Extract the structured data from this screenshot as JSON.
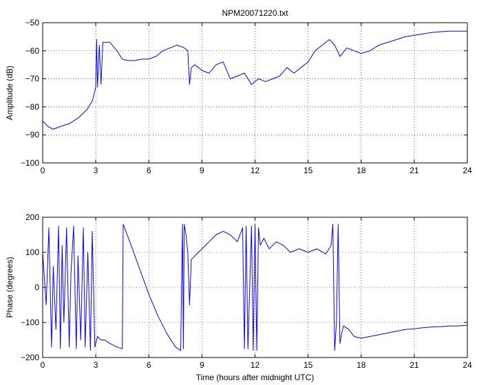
{
  "chart_data": [
    {
      "type": "line",
      "title": "NPM20071220.txt",
      "xlabel": "",
      "ylabel": "Amplitude (dB)",
      "xlim": [
        0,
        24
      ],
      "ylim": [
        -100,
        -50
      ],
      "xticks": [
        0,
        3,
        6,
        9,
        12,
        15,
        18,
        21,
        24
      ],
      "xtick_labels": [
        "0",
        "3",
        "6",
        "9",
        "12",
        "15",
        "18",
        "21",
        "24"
      ],
      "yticks": [
        -100,
        -90,
        -80,
        -70,
        -60,
        -50
      ],
      "ytick_labels": [
        "−100",
        "−90",
        "−80",
        "−70",
        "−60",
        "−50"
      ],
      "grid": true,
      "line_color": "#0000ff",
      "series": [
        {
          "x": [
            0,
            0.3,
            0.6,
            1.0,
            1.5,
            2.0,
            2.5,
            2.8,
            3.0,
            3.05,
            3.1,
            3.2,
            3.3,
            3.4,
            3.5,
            3.8,
            4.2,
            4.5,
            4.8,
            5.2,
            5.6,
            6.0,
            6.4,
            6.8,
            7.2,
            7.6,
            8.0,
            8.2,
            8.3,
            8.4,
            8.6,
            9.0,
            9.4,
            9.8,
            10.2,
            10.6,
            11.0,
            11.4,
            11.8,
            12.2,
            12.6,
            13.0,
            13.4,
            13.8,
            14.2,
            14.6,
            15.0,
            15.4,
            15.8,
            16.2,
            16.5,
            16.8,
            17.2,
            17.6,
            18.0,
            18.5,
            19.0,
            19.5,
            20.0,
            20.5,
            21.0,
            21.5,
            22.0,
            22.5,
            23.0,
            23.5,
            24.0
          ],
          "values": [
            -85,
            -87,
            -88,
            -87,
            -86,
            -84,
            -81,
            -78,
            -73,
            -56,
            -73,
            -58,
            -72,
            -57,
            -57,
            -57,
            -60,
            -63,
            -63.5,
            -63.5,
            -63,
            -63,
            -62,
            -60,
            -59,
            -58,
            -59,
            -60,
            -72,
            -66,
            -65,
            -67,
            -68,
            -65,
            -64,
            -70,
            -69,
            -68,
            -72,
            -70,
            -71,
            -70,
            -69,
            -66,
            -68,
            -66,
            -64,
            -60,
            -58,
            -56,
            -58,
            -62,
            -59,
            -60,
            -61,
            -60,
            -58,
            -57,
            -56,
            -55,
            -54.5,
            -54,
            -53.5,
            -53.2,
            -53,
            -53,
            -53
          ]
        }
      ]
    },
    {
      "type": "line",
      "title": "",
      "xlabel": "Time (hours after midnight UTC)",
      "ylabel": "Phase (degrees)",
      "xlim": [
        0,
        24
      ],
      "ylim": [
        -200,
        200
      ],
      "xticks": [
        0,
        3,
        6,
        9,
        12,
        15,
        18,
        21,
        24
      ],
      "xtick_labels": [
        "0",
        "3",
        "6",
        "9",
        "12",
        "15",
        "18",
        "21",
        "24"
      ],
      "yticks": [
        -200,
        -100,
        0,
        100,
        200
      ],
      "ytick_labels": [
        "−200",
        "−100",
        "0",
        "100",
        "200"
      ],
      "grid": true,
      "line_color": "#0000ff",
      "series": [
        {
          "x": [
            0,
            0.2,
            0.35,
            0.5,
            0.6,
            0.75,
            0.9,
            1.0,
            1.1,
            1.2,
            1.35,
            1.5,
            1.6,
            1.75,
            1.9,
            2.0,
            2.15,
            2.3,
            2.4,
            2.55,
            2.7,
            2.8,
            2.95,
            3.1,
            3.3,
            3.5,
            3.8,
            4.2,
            4.5,
            4.55,
            5.0,
            5.5,
            6.0,
            6.5,
            7.0,
            7.5,
            7.8,
            7.9,
            7.95,
            8.0,
            8.1,
            8.2,
            8.3,
            8.4,
            8.6,
            9.0,
            9.4,
            9.8,
            10.2,
            10.6,
            11.0,
            11.3,
            11.4,
            11.5,
            11.6,
            11.8,
            11.9,
            12.0,
            12.1,
            12.2,
            12.3,
            12.5,
            12.8,
            13.2,
            13.6,
            14.0,
            14.5,
            15.0,
            15.5,
            16.0,
            16.3,
            16.4,
            16.5,
            16.6,
            16.7,
            16.8,
            16.9,
            17.0,
            17.3,
            17.6,
            18.0,
            18.5,
            19.0,
            19.5,
            20.0,
            20.5,
            21.0,
            21.5,
            22.0,
            22.5,
            23.0,
            23.5,
            24.0
          ],
          "values": [
            100,
            -50,
            170,
            -170,
            60,
            -120,
            175,
            -175,
            120,
            -100,
            170,
            -170,
            40,
            175,
            -175,
            90,
            -150,
            170,
            -170,
            100,
            -180,
            160,
            -170,
            -140,
            -150,
            -150,
            -160,
            -170,
            -175,
            180,
            120,
            50,
            -20,
            -80,
            -130,
            -170,
            -180,
            180,
            -175,
            180,
            150,
            100,
            -50,
            80,
            90,
            110,
            130,
            150,
            160,
            150,
            130,
            170,
            -175,
            175,
            -175,
            175,
            -180,
            180,
            -180,
            170,
            120,
            140,
            110,
            130,
            120,
            100,
            110,
            100,
            110,
            95,
            120,
            180,
            -180,
            -100,
            180,
            -160,
            -130,
            -110,
            -120,
            -140,
            -145,
            -140,
            -135,
            -130,
            -125,
            -120,
            -118,
            -115,
            -113,
            -112,
            -110,
            -110,
            -108
          ]
        }
      ]
    }
  ]
}
